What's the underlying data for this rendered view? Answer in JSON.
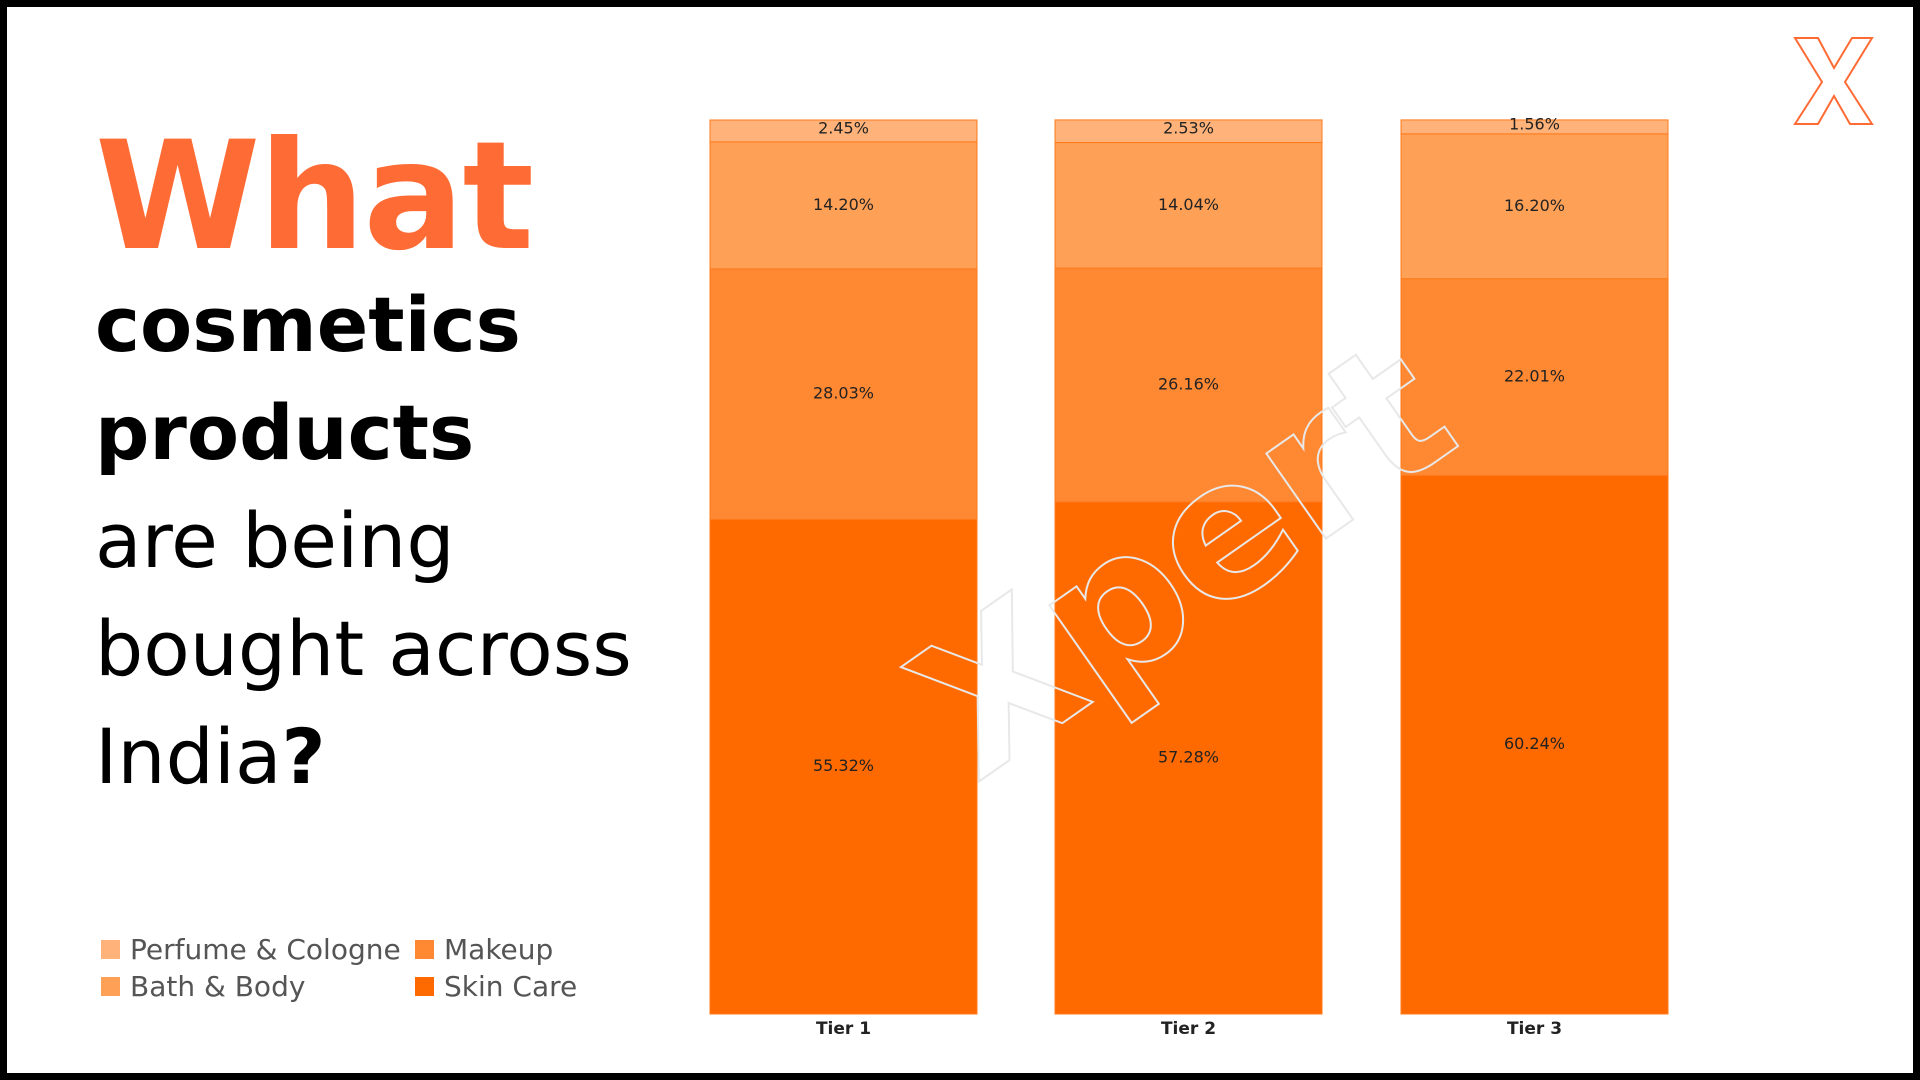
{
  "chart_data": {
    "type": "stacked-bar",
    "title": {
      "highlight": "What",
      "bold": [
        "cosmetics",
        "products"
      ],
      "regular": [
        "are being",
        "bought across",
        "India"
      ],
      "end": "?"
    },
    "watermark": "Xpert",
    "categories": [
      "Tier 1",
      "Tier 2",
      "Tier 3"
    ],
    "ylim": [
      0,
      100
    ],
    "series": [
      {
        "name": "Skin Care",
        "color": "#ff6a00",
        "values": [
          55.32,
          57.28,
          60.24
        ],
        "value_labels": [
          "55.32%",
          "57.28%",
          "60.24%"
        ]
      },
      {
        "name": "Makeup",
        "color": "#ff8833",
        "values": [
          28.03,
          26.16,
          22.01
        ],
        "value_labels": [
          "28.03%",
          "26.16%",
          "22.01%"
        ]
      },
      {
        "name": "Bath & Body",
        "color": "#ffa057",
        "values": [
          14.2,
          14.04,
          16.2
        ],
        "value_labels": [
          "14.20%",
          "14.04%",
          "16.20%"
        ]
      },
      {
        "name": "Perfume & Cologne",
        "color": "#ffb37a",
        "values": [
          2.45,
          2.53,
          1.56
        ],
        "value_labels": [
          "2.45%",
          "2.53%",
          "1.56%"
        ]
      }
    ],
    "legend_order": [
      3,
      1,
      2,
      0
    ]
  }
}
